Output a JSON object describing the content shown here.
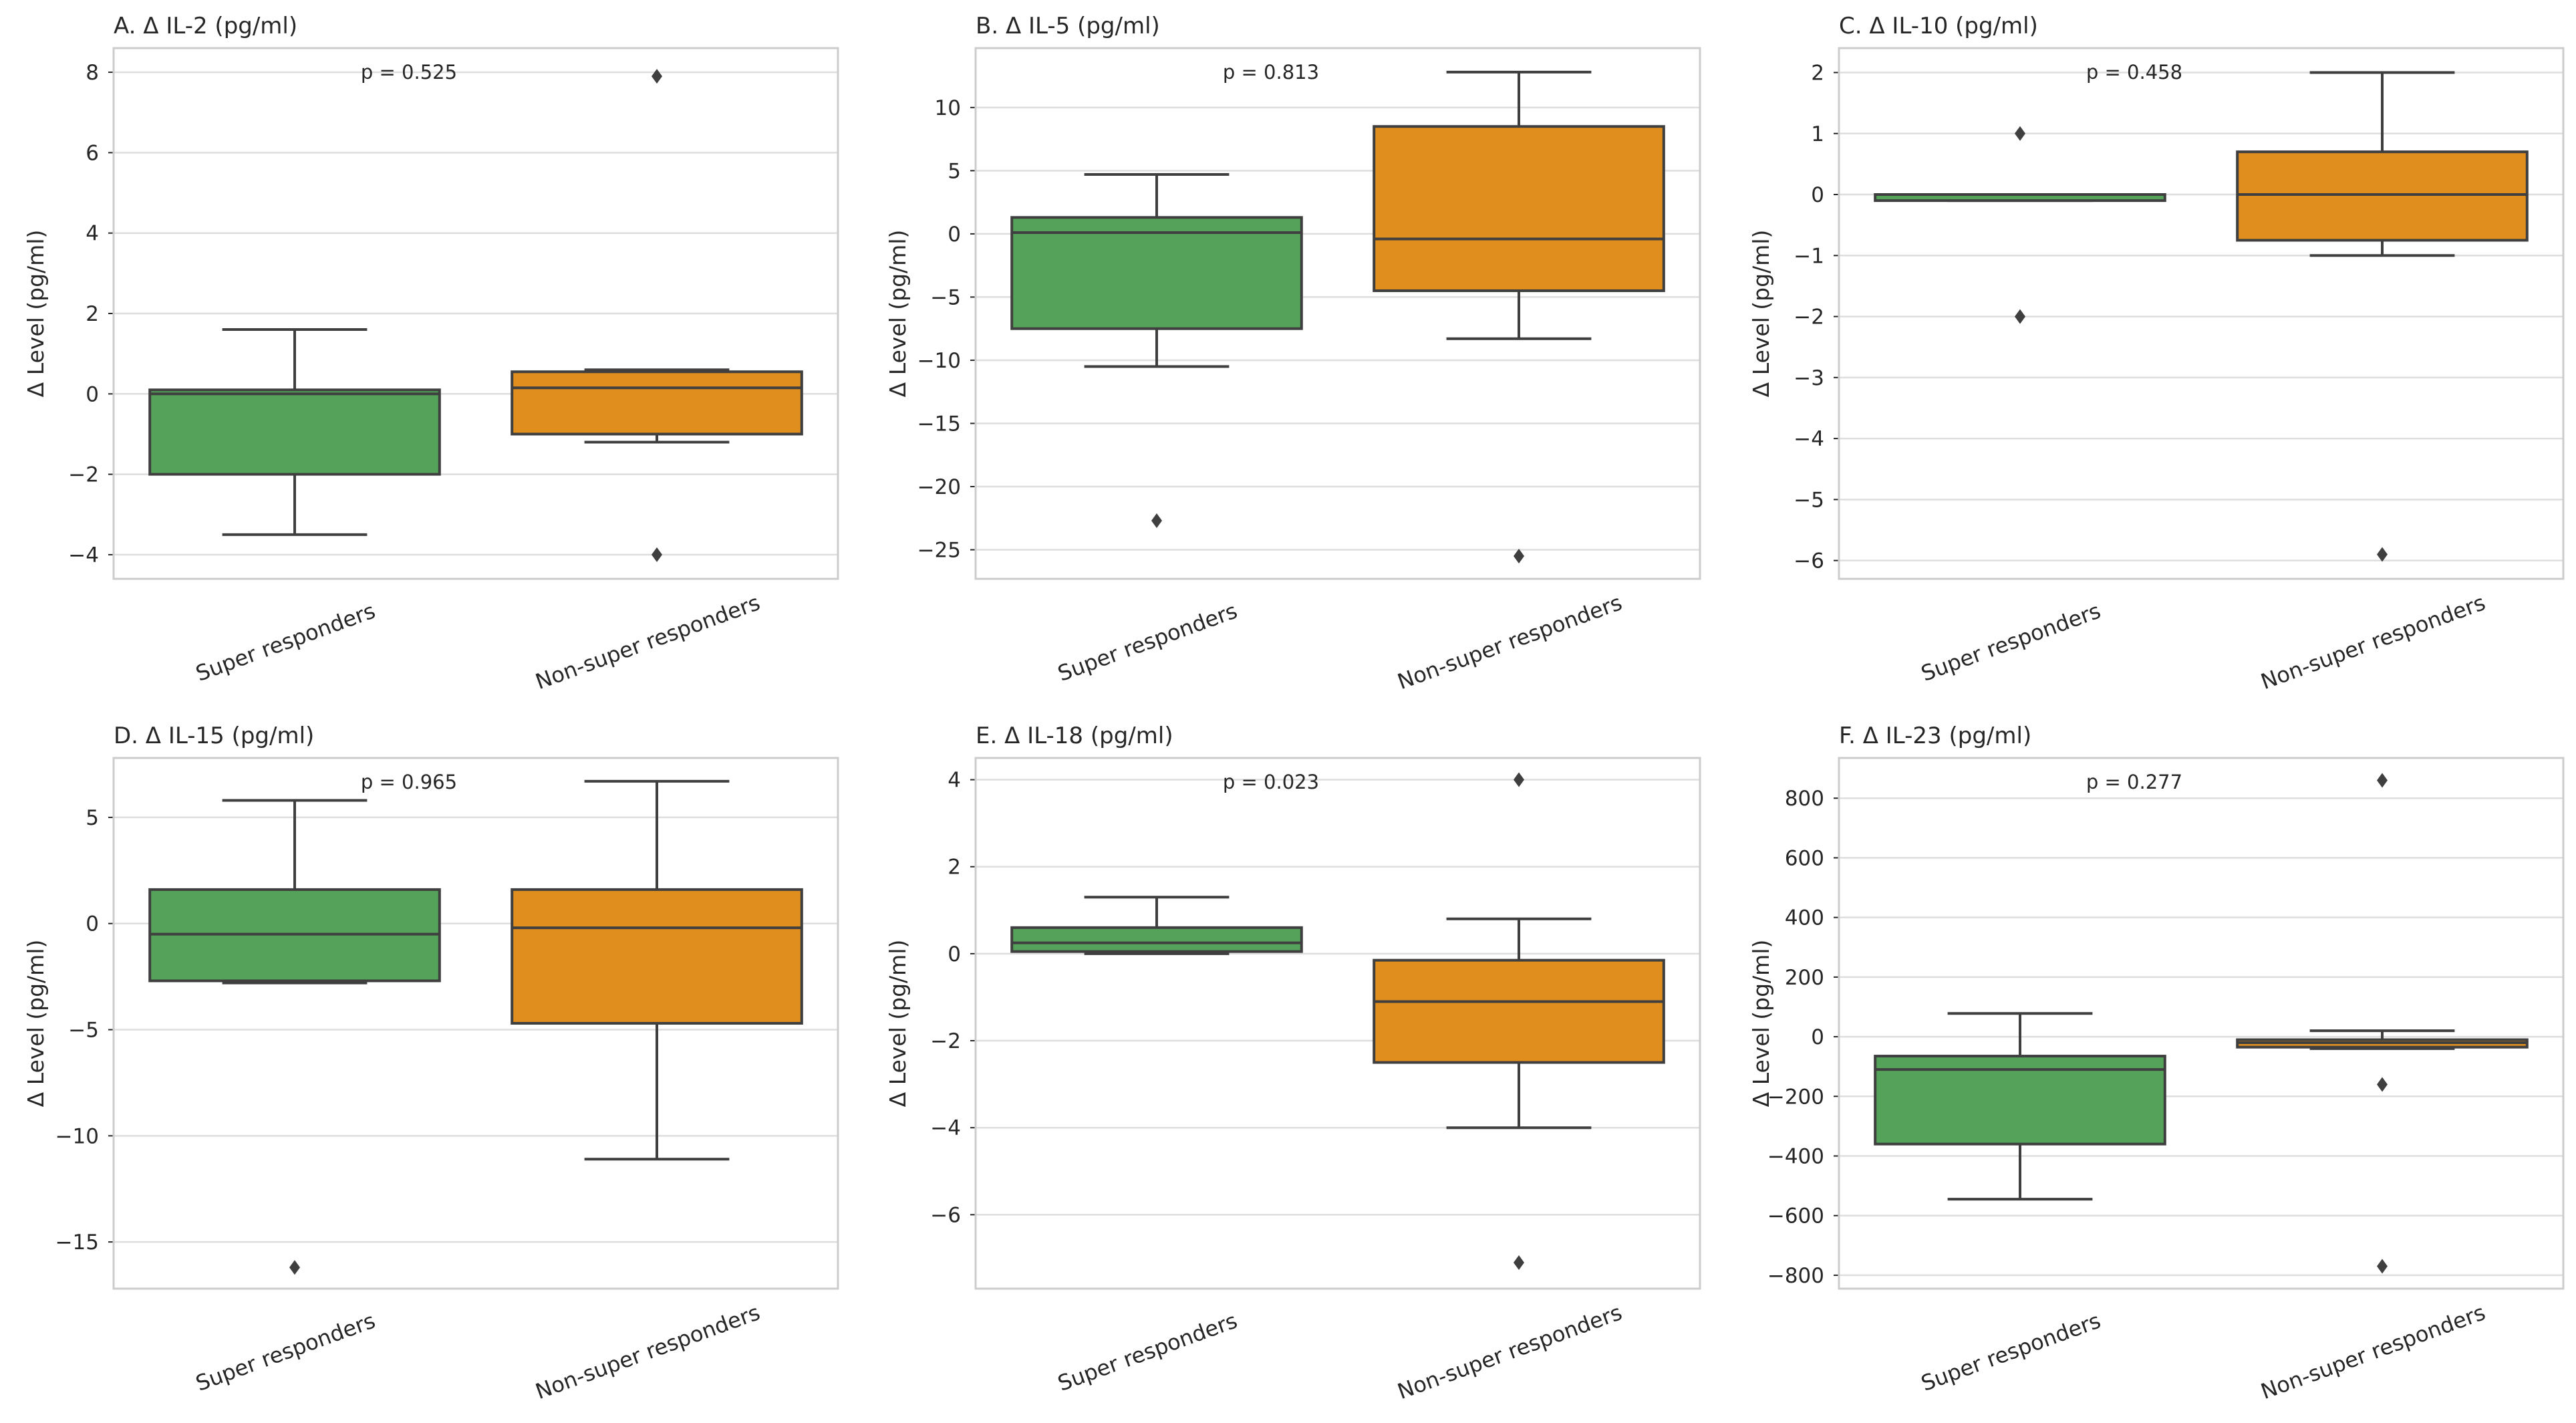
{
  "chart_data": [
    {
      "type": "box",
      "title": "A. Δ IL-2 (pg/ml)",
      "ylabel": "Δ Level (pg/ml)",
      "p_value": "p = 0.525",
      "ylim": [
        -4.6,
        8.6
      ],
      "yticks": [
        -4,
        -2,
        0,
        2,
        4,
        6,
        8
      ],
      "ytick_labels": [
        "−4",
        "−2",
        "0",
        "2",
        "4",
        "6",
        "8"
      ],
      "categories": [
        "Super responders",
        "Non-super responders"
      ],
      "boxes": [
        {
          "whisker_low": -3.5,
          "q1": -2.0,
          "median": 0.0,
          "q3": 0.1,
          "whisker_high": 1.6,
          "outliers": []
        },
        {
          "whisker_low": -1.2,
          "q1": -1.0,
          "median": 0.15,
          "q3": 0.55,
          "whisker_high": 0.6,
          "outliers": [
            7.9,
            -4.0
          ]
        }
      ]
    },
    {
      "type": "box",
      "title": "B. Δ IL-5 (pg/ml)",
      "ylabel": "Δ Level (pg/ml)",
      "p_value": "p = 0.813",
      "ylim": [
        -27.3,
        14.7
      ],
      "yticks": [
        -25,
        -20,
        -15,
        -10,
        -5,
        0,
        5,
        10
      ],
      "ytick_labels": [
        "−25",
        "−20",
        "−15",
        "−10",
        "−5",
        "0",
        "5",
        "10"
      ],
      "categories": [
        "Super responders",
        "Non-super responders"
      ],
      "boxes": [
        {
          "whisker_low": -10.5,
          "q1": -7.5,
          "median": 0.1,
          "q3": 1.3,
          "whisker_high": 4.7,
          "outliers": [
            -22.7
          ]
        },
        {
          "whisker_low": -8.3,
          "q1": -4.5,
          "median": -0.4,
          "q3": 8.5,
          "whisker_high": 12.8,
          "outliers": [
            -25.5
          ]
        }
      ]
    },
    {
      "type": "box",
      "title": "C. Δ IL-10 (pg/ml)",
      "ylabel": "Δ Level (pg/ml)",
      "p_value": "p = 0.458",
      "ylim": [
        -6.3,
        2.4
      ],
      "yticks": [
        -6,
        -5,
        -4,
        -3,
        -2,
        -1,
        0,
        1,
        2
      ],
      "ytick_labels": [
        "−6",
        "−5",
        "−4",
        "−3",
        "−2",
        "−1",
        "0",
        "1",
        "2"
      ],
      "categories": [
        "Super responders",
        "Non-super responders"
      ],
      "boxes": [
        {
          "whisker_low": -0.1,
          "q1": -0.1,
          "median": 0.0,
          "q3": 0.0,
          "whisker_high": 0.0,
          "outliers": [
            1.0,
            -2.0
          ]
        },
        {
          "whisker_low": -1.0,
          "q1": -0.75,
          "median": 0.0,
          "q3": 0.7,
          "whisker_high": 2.0,
          "outliers": [
            -5.9
          ]
        }
      ]
    },
    {
      "type": "box",
      "title": "D. Δ IL-15 (pg/ml)",
      "ylabel": "Δ Level (pg/ml)",
      "p_value": "p = 0.965",
      "ylim": [
        -17.2,
        7.8
      ],
      "yticks": [
        -15,
        -10,
        -5,
        0,
        5
      ],
      "ytick_labels": [
        "−15",
        "−10",
        "−5",
        "0",
        "5"
      ],
      "categories": [
        "Super responders",
        "Non-super responders"
      ],
      "boxes": [
        {
          "whisker_low": -2.8,
          "q1": -2.7,
          "median": -0.5,
          "q3": 1.6,
          "whisker_high": 5.8,
          "outliers": [
            -16.2
          ]
        },
        {
          "whisker_low": -11.1,
          "q1": -4.7,
          "median": -0.2,
          "q3": 1.6,
          "whisker_high": 6.7,
          "outliers": []
        }
      ]
    },
    {
      "type": "box",
      "title": "E. Δ IL-18 (pg/ml)",
      "ylabel": "Δ Level (pg/ml)",
      "p_value": "p = 0.023",
      "ylim": [
        -7.7,
        4.5
      ],
      "yticks": [
        -6,
        -4,
        -2,
        0,
        2,
        4
      ],
      "ytick_labels": [
        "−6",
        "−4",
        "−2",
        "0",
        "2",
        "4"
      ],
      "categories": [
        "Super responders",
        "Non-super responders"
      ],
      "boxes": [
        {
          "whisker_low": 0.0,
          "q1": 0.05,
          "median": 0.25,
          "q3": 0.6,
          "whisker_high": 1.3,
          "outliers": []
        },
        {
          "whisker_low": -4.0,
          "q1": -2.5,
          "median": -1.1,
          "q3": -0.15,
          "whisker_high": 0.8,
          "outliers": [
            4.0,
            -7.1
          ]
        }
      ]
    },
    {
      "type": "box",
      "title": "F. Δ IL-23 (pg/ml)",
      "ylabel": "Δ Level (pg/ml)",
      "p_value": "p = 0.277",
      "ylim": [
        -845,
        935
      ],
      "yticks": [
        -800,
        -600,
        -400,
        -200,
        0,
        200,
        400,
        600,
        800
      ],
      "ytick_labels": [
        "−800",
        "−600",
        "−400",
        "−200",
        "0",
        "200",
        "400",
        "600",
        "800"
      ],
      "categories": [
        "Super responders",
        "Non-super responders"
      ],
      "boxes": [
        {
          "whisker_low": -545,
          "q1": -360,
          "median": -110,
          "q3": -65,
          "whisker_high": 78,
          "outliers": []
        },
        {
          "whisker_low": -40,
          "q1": -35,
          "median": -20,
          "q3": -10,
          "whisker_high": 20,
          "outliers": [
            860,
            -160,
            -770
          ]
        }
      ]
    }
  ],
  "colors": {
    "super_responders": "#55a35a",
    "non_super_responders": "#e08f1f",
    "outline": "#3f3f3f",
    "grid": "#dedede",
    "frame": "#cccccc",
    "text": "#262626"
  }
}
